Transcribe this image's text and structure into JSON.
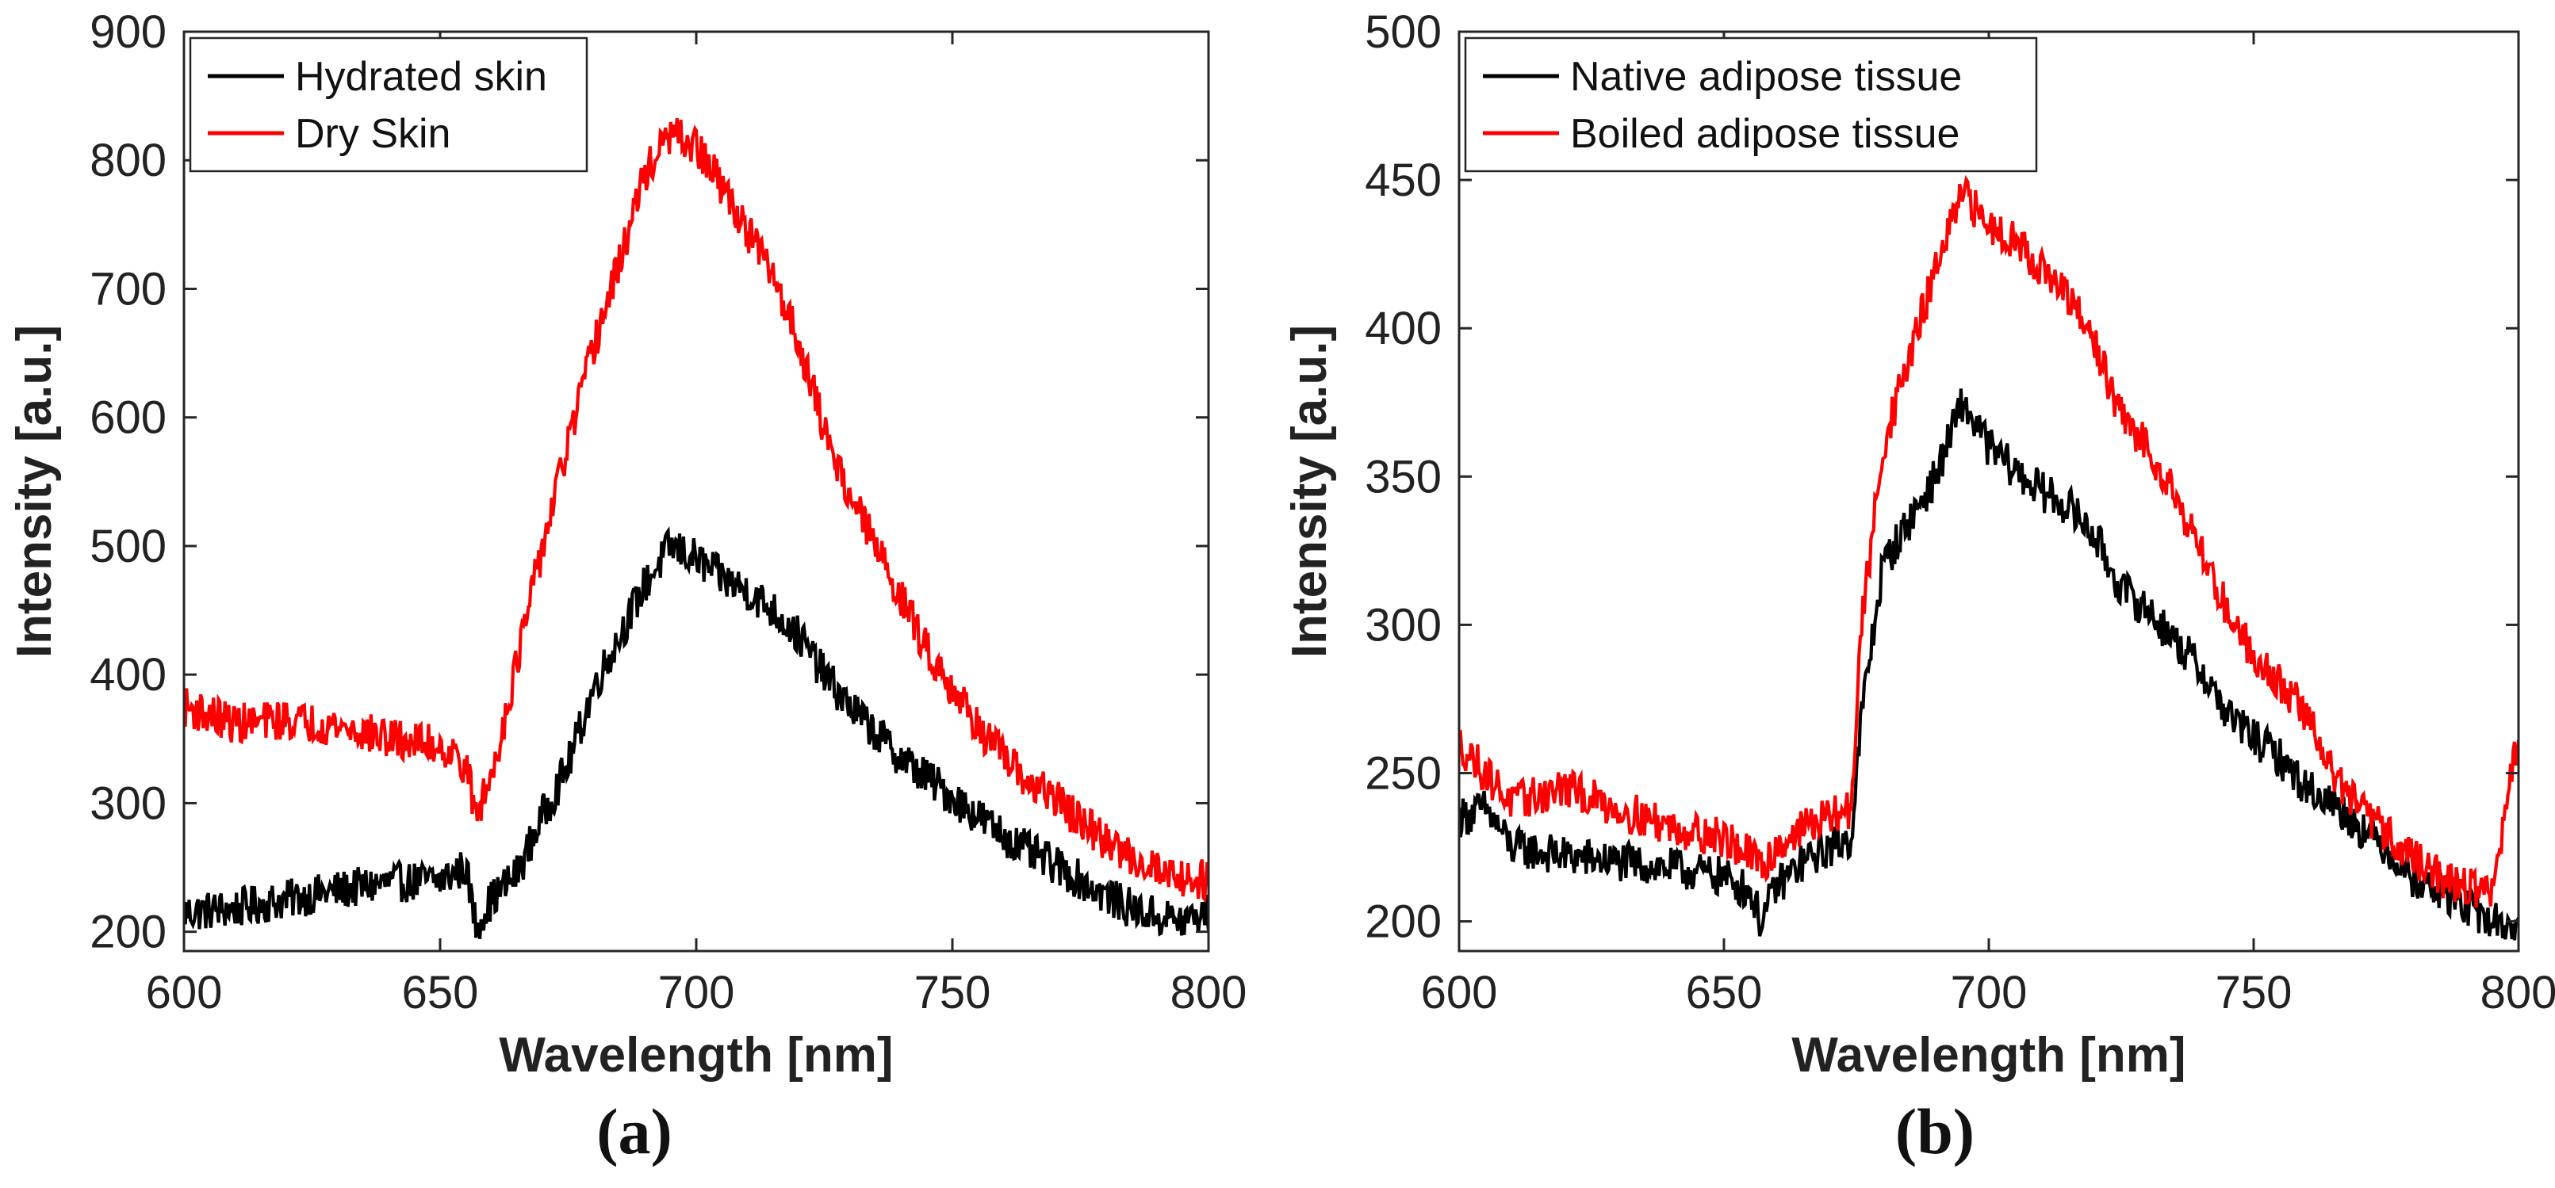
{
  "chart_data": [
    {
      "type": "line",
      "panel_label": "(a)",
      "xlabel": "Wavelength [nm]",
      "ylabel": "Intensity [a.u.]",
      "xlim": [
        600,
        800
      ],
      "ylim": [
        185,
        900
      ],
      "xticks": [
        600,
        650,
        700,
        750,
        800
      ],
      "yticks": [
        200,
        300,
        400,
        500,
        600,
        700,
        800,
        900
      ],
      "grid": false,
      "legend_position": "top-left",
      "series": [
        {
          "name": "Hydrated skin",
          "color": "#000000",
          "x": [
            600,
            610,
            620,
            630,
            640,
            650,
            655,
            657,
            660,
            665,
            670,
            675,
            680,
            685,
            690,
            695,
            700,
            705,
            710,
            715,
            720,
            725,
            730,
            735,
            740,
            745,
            750,
            755,
            760,
            765,
            770,
            775,
            780,
            785,
            790,
            795,
            800
          ],
          "y": [
            215,
            218,
            225,
            232,
            238,
            240,
            250,
            205,
            225,
            245,
            290,
            330,
            390,
            430,
            470,
            500,
            490,
            475,
            465,
            450,
            430,
            400,
            375,
            355,
            335,
            320,
            305,
            290,
            275,
            262,
            252,
            240,
            228,
            218,
            212,
            208,
            215
          ]
        },
        {
          "name": "Dry Skin",
          "color": "#ff0000",
          "x": [
            600,
            610,
            620,
            630,
            640,
            650,
            655,
            657,
            660,
            665,
            670,
            675,
            680,
            685,
            690,
            695,
            700,
            705,
            710,
            715,
            720,
            725,
            730,
            735,
            740,
            745,
            750,
            755,
            760,
            765,
            770,
            775,
            780,
            785,
            790,
            795,
            800
          ],
          "y": [
            375,
            362,
            365,
            360,
            350,
            345,
            330,
            290,
            320,
            410,
            500,
            580,
            655,
            720,
            790,
            820,
            810,
            780,
            745,
            710,
            660,
            590,
            540,
            500,
            460,
            420,
            390,
            360,
            335,
            315,
            305,
            285,
            270,
            258,
            250,
            242,
            240
          ]
        }
      ]
    },
    {
      "type": "line",
      "panel_label": "(b)",
      "xlabel": "Wavelength [nm]",
      "ylabel": "Intensity [a.u.]",
      "xlim": [
        600,
        800
      ],
      "ylim": [
        190,
        500
      ],
      "xticks": [
        600,
        650,
        700,
        750,
        800
      ],
      "yticks": [
        200,
        250,
        300,
        350,
        400,
        450,
        500
      ],
      "grid": false,
      "legend_position": "top-left",
      "series": [
        {
          "name": "Native adipose tissue",
          "color": "#000000",
          "x": [
            600,
            605,
            610,
            620,
            630,
            640,
            650,
            655,
            657,
            660,
            665,
            670,
            674,
            676,
            680,
            685,
            690,
            695,
            700,
            705,
            710,
            715,
            720,
            725,
            730,
            735,
            740,
            745,
            750,
            755,
            760,
            765,
            770,
            775,
            780,
            785,
            790,
            795,
            800
          ],
          "y": [
            235,
            238,
            225,
            222,
            220,
            218,
            215,
            210,
            200,
            212,
            220,
            225,
            228,
            270,
            320,
            335,
            350,
            375,
            360,
            352,
            345,
            340,
            330,
            312,
            305,
            295,
            285,
            270,
            262,
            255,
            245,
            240,
            232,
            225,
            215,
            210,
            205,
            200,
            198
          ]
        },
        {
          "name": "Boiled adipose tissue",
          "color": "#ff0000",
          "x": [
            600,
            605,
            610,
            620,
            630,
            640,
            650,
            655,
            657,
            660,
            665,
            670,
            674,
            676,
            680,
            685,
            690,
            695,
            700,
            705,
            710,
            715,
            720,
            725,
            730,
            735,
            740,
            745,
            750,
            755,
            760,
            765,
            770,
            775,
            780,
            785,
            790,
            795,
            800
          ],
          "y": [
            260,
            250,
            240,
            245,
            238,
            232,
            228,
            222,
            218,
            225,
            232,
            235,
            238,
            300,
            360,
            390,
            420,
            445,
            435,
            430,
            420,
            410,
            395,
            370,
            360,
            345,
            325,
            305,
            290,
            280,
            270,
            250,
            238,
            230,
            222,
            215,
            212,
            210,
            262
          ]
        }
      ]
    }
  ]
}
